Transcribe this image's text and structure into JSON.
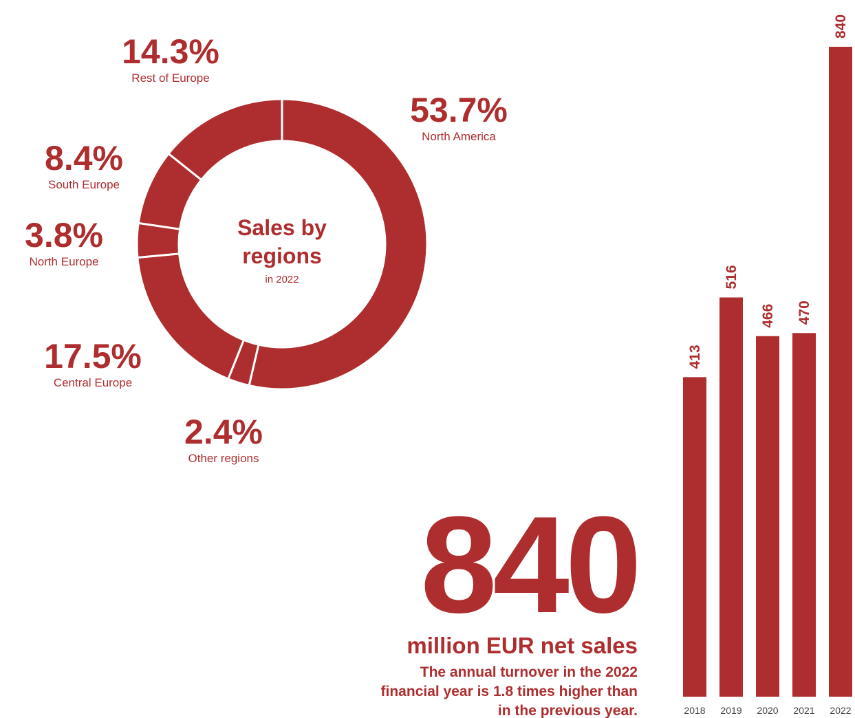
{
  "chart_data": [
    {
      "type": "donut",
      "title": "Sales by regions",
      "subtitle": "in 2022",
      "categories": [
        "North America",
        "Other regions",
        "Central Europe",
        "North Europe",
        "South Europe",
        "Rest of Europe"
      ],
      "values": [
        53.7,
        2.4,
        17.5,
        3.8,
        8.4,
        14.3
      ],
      "value_labels": [
        "53.7%",
        "2.4%",
        "17.5%",
        "3.8%",
        "8.4%",
        "14.3%"
      ],
      "color": "#ae2d2e"
    },
    {
      "type": "bar",
      "categories": [
        "2018",
        "2019",
        "2020",
        "2021",
        "2022"
      ],
      "values": [
        413,
        516,
        466,
        470,
        840
      ],
      "color": "#ae2d2e",
      "highlight": "840",
      "highlight_caption": "million EUR net sales",
      "description": [
        "The annual turnover in the 2022",
        "financial year is 1.8 times higher than",
        "in the previous year."
      ]
    }
  ]
}
